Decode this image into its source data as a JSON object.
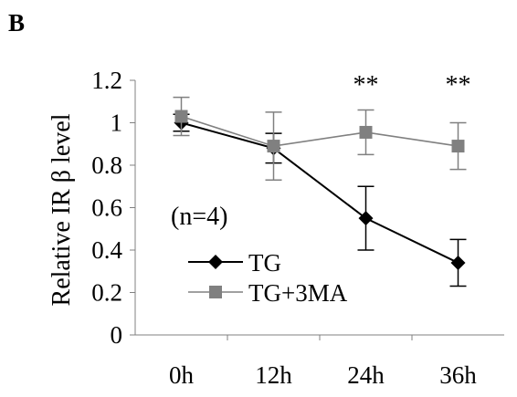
{
  "panel_label": "B",
  "chart_data": {
    "type": "line",
    "categories": [
      "0h",
      "12h",
      "24h",
      "36h"
    ],
    "ylabel": "Relative IR β level",
    "ylim": [
      0,
      1.2
    ],
    "yticks": [
      "0",
      "0.2",
      "0.4",
      "0.6",
      "0.8",
      "1",
      "1.2"
    ],
    "annotation": "(n=4)",
    "significance": [
      {
        "category": "24h",
        "label": "**"
      },
      {
        "category": "36h",
        "label": "**"
      }
    ],
    "legend_position": "bottom-left",
    "series": [
      {
        "name": "TG",
        "color": "#000000",
        "marker": "diamond",
        "values": [
          1.0,
          0.88,
          0.55,
          0.34
        ],
        "errors": [
          0.04,
          0.07,
          0.15,
          0.11
        ]
      },
      {
        "name": "TG+3MA",
        "color": "#808080",
        "marker": "square",
        "values": [
          1.03,
          0.89,
          0.955,
          0.89
        ],
        "errors": [
          0.09,
          0.16,
          0.105,
          0.11
        ]
      }
    ]
  }
}
